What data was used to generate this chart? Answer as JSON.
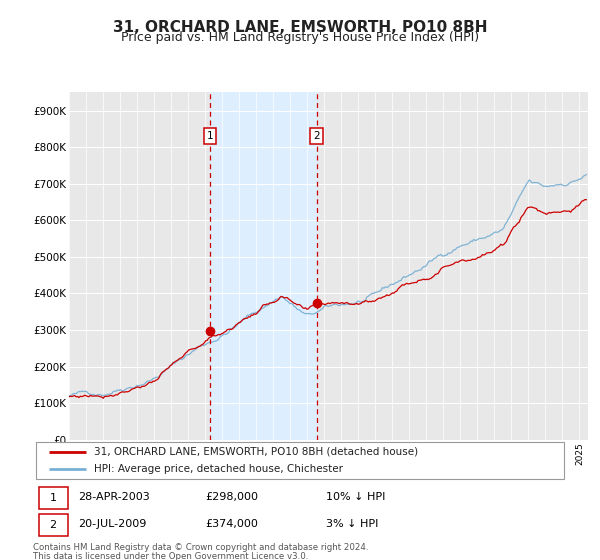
{
  "title": "31, ORCHARD LANE, EMSWORTH, PO10 8BH",
  "subtitle": "Price paid vs. HM Land Registry's House Price Index (HPI)",
  "legend_line1": "31, ORCHARD LANE, EMSWORTH, PO10 8BH (detached house)",
  "legend_line2": "HPI: Average price, detached house, Chichester",
  "footnote1": "Contains HM Land Registry data © Crown copyright and database right 2024.",
  "footnote2": "This data is licensed under the Open Government Licence v3.0.",
  "sale1_date_str": "28-APR-2003",
  "sale1_price_str": "£298,000",
  "sale1_hpi_str": "10% ↓ HPI",
  "sale2_date_str": "20-JUL-2009",
  "sale2_price_str": "£374,000",
  "sale2_hpi_str": "3% ↓ HPI",
  "sale1_x": 2003.3,
  "sale1_y": 298000,
  "sale2_x": 2009.55,
  "sale2_y": 374000,
  "vline1_x": 2003.3,
  "vline2_x": 2009.55,
  "shade_x1": 2003.3,
  "shade_x2": 2009.55,
  "xmin": 1995.0,
  "xmax": 2025.5,
  "ymin": 0,
  "ymax": 950000,
  "yticks": [
    0,
    100000,
    200000,
    300000,
    400000,
    500000,
    600000,
    700000,
    800000,
    900000
  ],
  "ytick_labels": [
    "£0",
    "£100K",
    "£200K",
    "£300K",
    "£400K",
    "£500K",
    "£600K",
    "£700K",
    "£800K",
    "£900K"
  ],
  "red_line_color": "#cc0000",
  "blue_line_color": "#7ab0d4",
  "shade_color": "#ddeeff",
  "vline_color": "#cc0000",
  "bg_color": "#e8e8e8",
  "grid_color": "#ffffff",
  "title_fontsize": 11,
  "subtitle_fontsize": 9,
  "axis_fontsize": 7.5
}
